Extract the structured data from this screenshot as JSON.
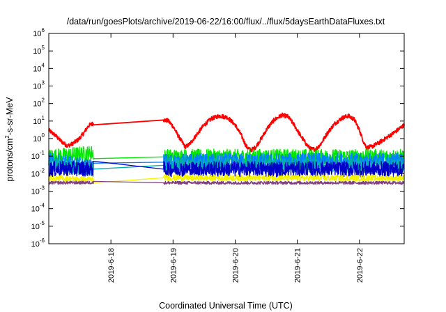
{
  "chart_data": {
    "type": "line",
    "title": "/data/run/goesPlots/archive/2019-06-22/16:00/flux/../flux/5daysEarthDataFluxes.txt",
    "xlabel": "Coordinated Universal Time (UTC)",
    "ylabel": "protons/cm2-s-sr-MeV",
    "ylabel_parts": [
      "protons/cm",
      "2",
      "-s-sr-MeV"
    ],
    "yscale": "log",
    "ylim": [
      1e-06,
      1000000.0
    ],
    "xlim": [
      17.0,
      22.72
    ],
    "x_unit": "day of June 2019 (UTC)",
    "grid": false,
    "legend": "none",
    "y_ticks": [
      {
        "base": "10",
        "exp": "-6",
        "value": 1e-06
      },
      {
        "base": "10",
        "exp": "-5",
        "value": 1e-05
      },
      {
        "base": "10",
        "exp": "-4",
        "value": 0.0001
      },
      {
        "base": "10",
        "exp": "-3",
        "value": 0.001
      },
      {
        "base": "10",
        "exp": "-2",
        "value": 0.01
      },
      {
        "base": "10",
        "exp": "-1",
        "value": 0.1
      },
      {
        "base": "10",
        "exp": "0",
        "value": 1
      },
      {
        "base": "10",
        "exp": "1",
        "value": 10
      },
      {
        "base": "10",
        "exp": "2",
        "value": 100
      },
      {
        "base": "10",
        "exp": "3",
        "value": 1000
      },
      {
        "base": "10",
        "exp": "4",
        "value": 10000
      },
      {
        "base": "10",
        "exp": "5",
        "value": 100000
      },
      {
        "base": "10",
        "exp": "6",
        "value": 1000000
      }
    ],
    "x_ticks": [
      {
        "label": "2019-6-18",
        "value": 18
      },
      {
        "label": "2019-6-19",
        "value": 19
      },
      {
        "label": "2019-6-20",
        "value": 20
      },
      {
        "label": "2019-6-21",
        "value": 21
      },
      {
        "label": "2019-6-22",
        "value": 22
      }
    ],
    "gaps": [
      [
        17.72,
        18.85
      ]
    ],
    "series": [
      {
        "color": "#ff0000",
        "noise": 0.12,
        "bridge": true,
        "points": [
          [
            17.0,
            3.0
          ],
          [
            17.1,
            1.6
          ],
          [
            17.2,
            0.7
          ],
          [
            17.3,
            0.38
          ],
          [
            17.38,
            0.5
          ],
          [
            17.48,
            0.9
          ],
          [
            17.56,
            2.0
          ],
          [
            17.64,
            5.5
          ],
          [
            17.72,
            7.6
          ],
          [
            18.85,
            11.5
          ],
          [
            18.92,
            10.5
          ],
          [
            19.0,
            5.0
          ],
          [
            19.08,
            1.5
          ],
          [
            19.15,
            0.6
          ],
          [
            19.2,
            0.32
          ],
          [
            19.27,
            0.5
          ],
          [
            19.37,
            1.5
          ],
          [
            19.5,
            6.0
          ],
          [
            19.62,
            14.0
          ],
          [
            19.75,
            20.0
          ],
          [
            19.88,
            16.0
          ],
          [
            20.0,
            6.0
          ],
          [
            20.1,
            1.5
          ],
          [
            20.18,
            0.35
          ],
          [
            20.25,
            0.22
          ],
          [
            20.32,
            0.3
          ],
          [
            20.42,
            1.0
          ],
          [
            20.52,
            4.0
          ],
          [
            20.62,
            11.0
          ],
          [
            20.75,
            22.0
          ],
          [
            20.85,
            18.0
          ],
          [
            20.95,
            6.0
          ],
          [
            21.05,
            1.5
          ],
          [
            21.15,
            0.45
          ],
          [
            21.22,
            0.25
          ],
          [
            21.3,
            0.25
          ],
          [
            21.38,
            0.5
          ],
          [
            21.48,
            2.0
          ],
          [
            21.6,
            7.0
          ],
          [
            21.72,
            15.0
          ],
          [
            21.82,
            20.0
          ],
          [
            21.92,
            12.0
          ],
          [
            22.0,
            3.0
          ],
          [
            22.07,
            0.6
          ],
          [
            22.12,
            0.3
          ],
          [
            22.2,
            0.35
          ],
          [
            22.32,
            0.6
          ],
          [
            22.45,
            1.2
          ],
          [
            22.58,
            2.5
          ],
          [
            22.72,
            6.0
          ]
        ]
      },
      {
        "color": "#00e800",
        "noise": 0.5,
        "bridge": true,
        "points": [
          [
            17.0,
            0.09
          ],
          [
            17.72,
            0.15
          ],
          [
            18.85,
            0.09
          ],
          [
            22.72,
            0.09
          ]
        ]
      },
      {
        "color": "#0080ff",
        "noise": 0.55,
        "bridge": true,
        "points": [
          [
            17.0,
            0.05
          ],
          [
            17.72,
            0.02
          ],
          [
            18.85,
            0.045
          ],
          [
            22.72,
            0.05
          ]
        ]
      },
      {
        "color": "#00b0b0",
        "noise": 0.45,
        "bridge": true,
        "points": [
          [
            17.0,
            0.03
          ],
          [
            17.72,
            0.02
          ],
          [
            18.85,
            0.03
          ],
          [
            22.72,
            0.028
          ]
        ]
      },
      {
        "color": "#0000c8",
        "noise": 0.5,
        "bridge": true,
        "points": [
          [
            17.0,
            0.018
          ],
          [
            17.72,
            0.02
          ],
          [
            18.85,
            0.018
          ],
          [
            22.72,
            0.018
          ]
        ]
      },
      {
        "color": "#f5f500",
        "noise": 0.2,
        "bridge": true,
        "points": [
          [
            17.0,
            0.0055
          ],
          [
            17.72,
            0.0045
          ],
          [
            18.85,
            0.0058
          ],
          [
            22.72,
            0.0055
          ]
        ]
      },
      {
        "color": "#804080",
        "noise": 0.1,
        "bridge": true,
        "points": [
          [
            17.0,
            0.003
          ],
          [
            17.72,
            0.0031
          ],
          [
            18.85,
            0.003
          ],
          [
            22.72,
            0.003
          ]
        ]
      }
    ]
  }
}
